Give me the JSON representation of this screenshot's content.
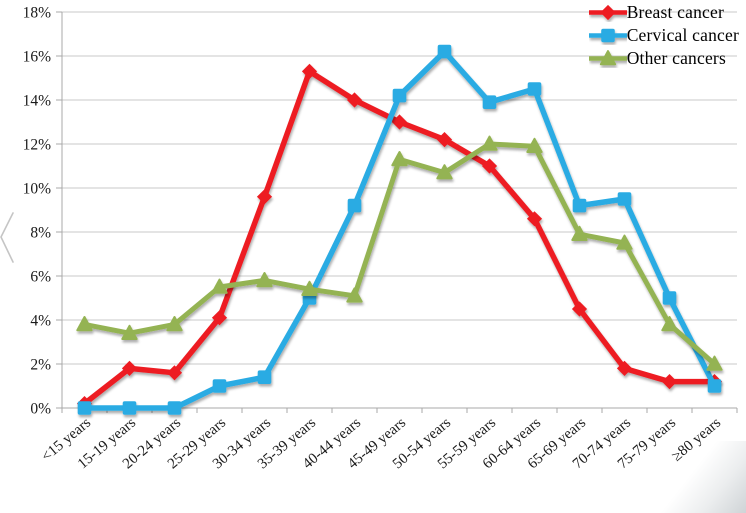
{
  "chart_data": {
    "type": "line",
    "title": "",
    "xlabel": "",
    "ylabel": "",
    "ylim": [
      0,
      18
    ],
    "ytick_step": 2,
    "ytick_labels": [
      "0%",
      "2%",
      "4%",
      "6%",
      "8%",
      "10%",
      "12%",
      "14%",
      "16%",
      "18%"
    ],
    "grid": true,
    "legend_position": "top-right",
    "categories": [
      "<15 years",
      "15-19 years",
      "20-24 years",
      "25-29 years",
      "30-34 years",
      "35-39 years",
      "40-44 years",
      "45-49 years",
      "50-54 years",
      "55-59 years",
      "60-64 years",
      "65-69 years",
      "70-74 years",
      "75-79 years",
      "≥80 years"
    ],
    "series": [
      {
        "name": "Breast cancer",
        "marker": "diamond",
        "color": "#ED1C24",
        "values": [
          0.2,
          1.8,
          1.6,
          4.1,
          9.6,
          15.3,
          14.0,
          13.0,
          12.2,
          11.0,
          8.6,
          4.5,
          1.8,
          1.2,
          1.2
        ]
      },
      {
        "name": "Cervical cancer",
        "marker": "square",
        "color": "#29ABE3",
        "values": [
          0.0,
          0.0,
          0.0,
          1.0,
          1.4,
          5.0,
          9.2,
          14.2,
          16.2,
          13.9,
          14.5,
          9.2,
          9.5,
          5.0,
          1.0
        ]
      },
      {
        "name": "Other cancers",
        "marker": "triangle",
        "color": "#94B352",
        "values": [
          3.8,
          3.4,
          3.8,
          5.5,
          5.8,
          5.4,
          5.1,
          11.3,
          10.7,
          12.0,
          11.9,
          7.9,
          7.5,
          3.8,
          2.0
        ]
      }
    ]
  },
  "colors": {
    "background": "#FFFFFF",
    "gridline": "#C9C9C9",
    "axis": "#A8A8A8",
    "tick_text": "#1A1A1A",
    "legend_text": "#000000",
    "edge_artifact": "#C5C5C5"
  }
}
